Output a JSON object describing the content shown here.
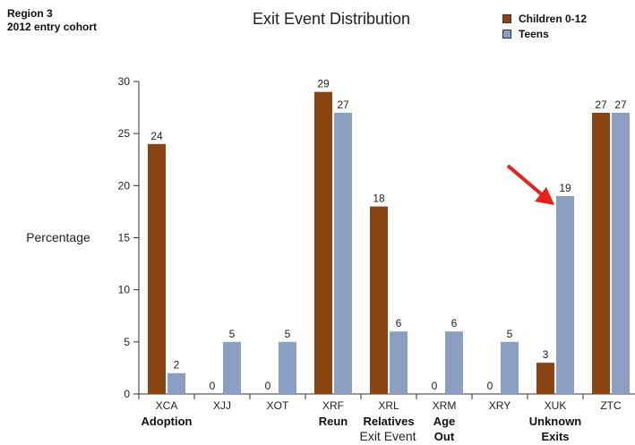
{
  "header": {
    "region": "Region 3",
    "cohort": "2012 entry cohort"
  },
  "chart_data": {
    "type": "bar",
    "title": "Exit Event Distribution",
    "xlabel": "Exit Event",
    "ylabel": "Percentage",
    "ylim": [
      0,
      30
    ],
    "yticks": [
      0,
      5,
      10,
      15,
      20,
      25,
      30
    ],
    "grid": false,
    "legend_position": "top-right",
    "categories": [
      "XCA",
      "XJJ",
      "XOT",
      "XRF",
      "XRL",
      "XRM",
      "XRY",
      "XUK",
      "ZTC"
    ],
    "category_descriptions": [
      "Adoption",
      "",
      "",
      "Reun",
      "Relatives",
      "Age Out",
      "",
      "Unknown Exits",
      ""
    ],
    "series": [
      {
        "name": "Children 0-12",
        "color": "#8b4513",
        "values": [
          24,
          0,
          0,
          29,
          18,
          0,
          0,
          3,
          27
        ]
      },
      {
        "name": "Teens",
        "color": "#8a9fc2",
        "values": [
          2,
          5,
          5,
          27,
          6,
          6,
          5,
          19,
          27
        ]
      }
    ],
    "annotation": {
      "type": "arrow",
      "color": "#e8201a",
      "category": "XUK",
      "series": "Teens"
    }
  }
}
